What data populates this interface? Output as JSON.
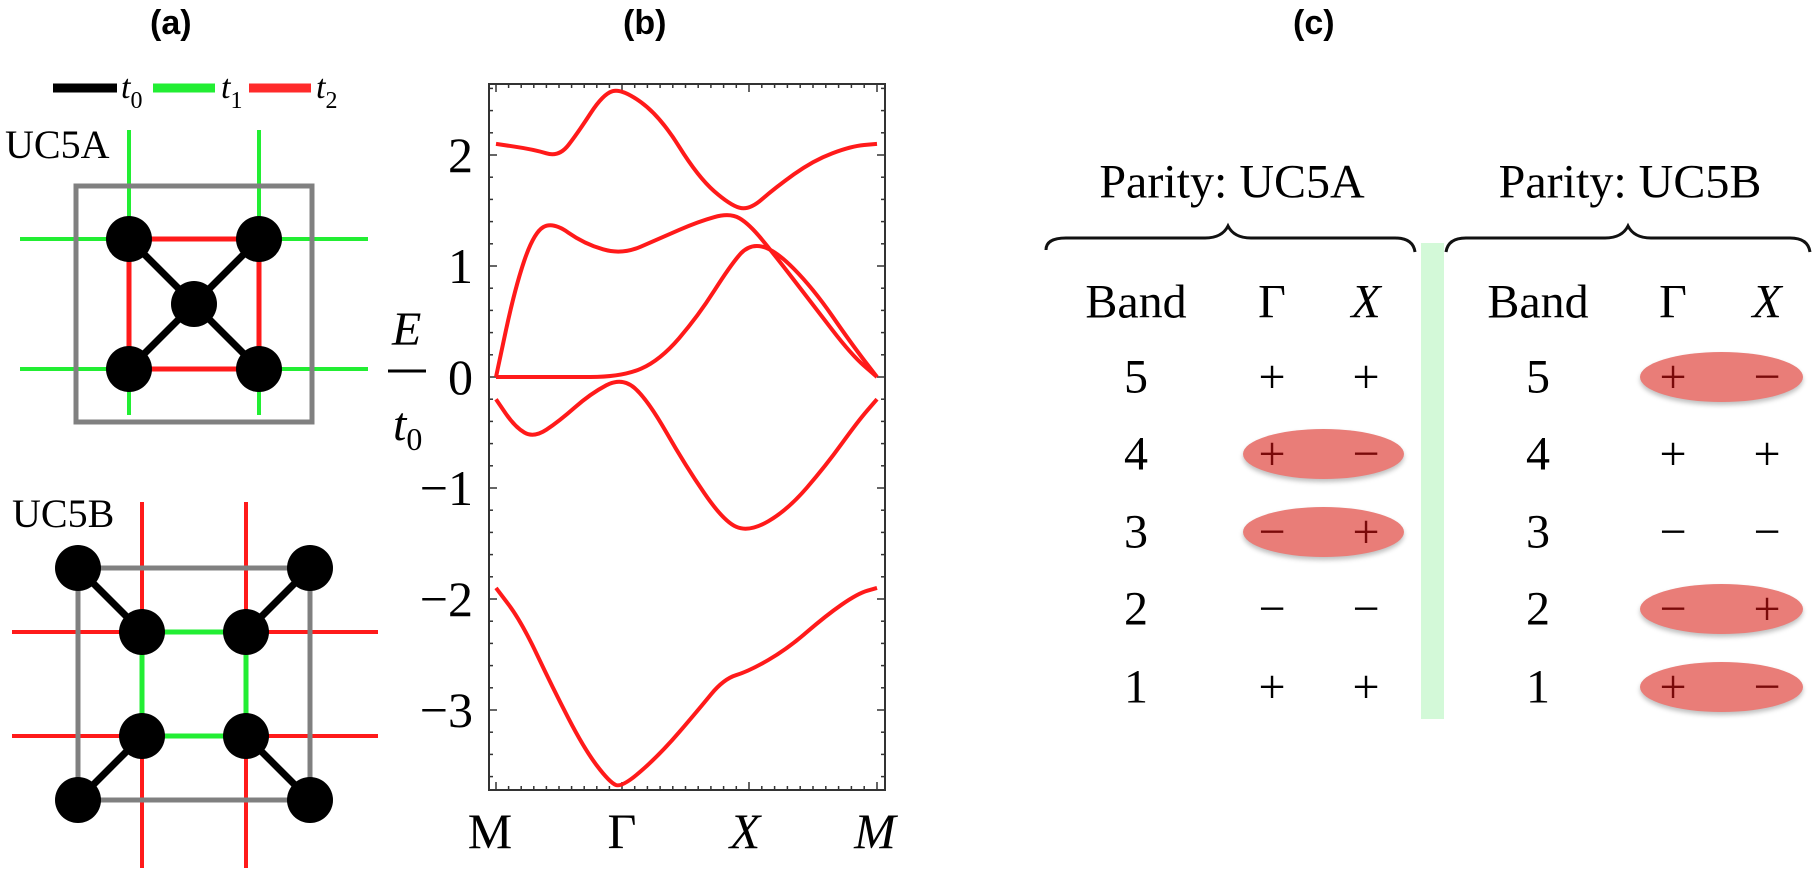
{
  "panels": {
    "a": {
      "label": "(a)"
    },
    "b": {
      "label": "(b)"
    },
    "c": {
      "label": "(c)"
    }
  },
  "legend": {
    "items": [
      {
        "symbol": "t",
        "sub": "0",
        "color": "#000000"
      },
      {
        "symbol": "t",
        "sub": "1",
        "color": "#22ee33"
      },
      {
        "symbol": "t",
        "sub": "2",
        "color": "#ff2a2a"
      }
    ]
  },
  "lattice": {
    "uc5a_label": "UC5A",
    "uc5b_label": "UC5B",
    "colors": {
      "t0": "#000000",
      "t1": "#22ee33",
      "t2": "#ff1a1a",
      "cell": "#808080",
      "site": "#000000"
    }
  },
  "chart_data": {
    "type": "line",
    "title": "(b)",
    "xlabel": "",
    "ylabel": "E / t0",
    "ylabel_num": "E",
    "ylabel_den": "t",
    "ylabel_den_sub": "0",
    "x_ticks": [
      "M",
      "Γ",
      "X",
      "M"
    ],
    "y_ticks": [
      "2",
      "1",
      "0",
      "−1",
      "−2",
      "−3"
    ],
    "y_tick_values": [
      2,
      1,
      0,
      -1,
      -2,
      -3
    ],
    "ylim": [
      -3.7,
      2.65
    ],
    "grid": false,
    "line_color": "#ff1a1a",
    "x_positions": [
      0,
      1,
      2,
      3
    ],
    "series": [
      {
        "name": "band 5",
        "points": [
          [
            0,
            2.1
          ],
          [
            0.3,
            2.05
          ],
          [
            0.5,
            1.98
          ],
          [
            0.65,
            2.2
          ],
          [
            0.85,
            2.55
          ],
          [
            1.0,
            2.6
          ],
          [
            1.3,
            2.35
          ],
          [
            1.6,
            1.8
          ],
          [
            1.85,
            1.55
          ],
          [
            2.0,
            1.5
          ],
          [
            2.2,
            1.7
          ],
          [
            2.5,
            1.95
          ],
          [
            2.8,
            2.08
          ],
          [
            3.0,
            2.1
          ]
        ]
      },
      {
        "name": "band 4",
        "points": [
          [
            0,
            0
          ],
          [
            0.15,
            0.8
          ],
          [
            0.3,
            1.3
          ],
          [
            0.45,
            1.4
          ],
          [
            0.7,
            1.2
          ],
          [
            1.0,
            1.1
          ],
          [
            1.3,
            1.25
          ],
          [
            1.6,
            1.4
          ],
          [
            1.85,
            1.48
          ],
          [
            2.0,
            1.38
          ],
          [
            2.2,
            1.1
          ],
          [
            2.5,
            0.65
          ],
          [
            2.8,
            0.2
          ],
          [
            3.0,
            0
          ]
        ]
      },
      {
        "name": "band 3",
        "points": [
          [
            0,
            0
          ],
          [
            0.5,
            0
          ],
          [
            1.0,
            0
          ],
          [
            1.3,
            0.15
          ],
          [
            1.6,
            0.55
          ],
          [
            1.85,
            1.0
          ],
          [
            2.0,
            1.2
          ],
          [
            2.2,
            1.15
          ],
          [
            2.5,
            0.8
          ],
          [
            2.8,
            0.3
          ],
          [
            3.0,
            0
          ]
        ]
      },
      {
        "name": "band 2",
        "points": [
          [
            0,
            -0.2
          ],
          [
            0.15,
            -0.45
          ],
          [
            0.3,
            -0.55
          ],
          [
            0.5,
            -0.4
          ],
          [
            0.75,
            -0.15
          ],
          [
            1.0,
            0
          ],
          [
            1.2,
            -0.2
          ],
          [
            1.5,
            -0.8
          ],
          [
            1.8,
            -1.3
          ],
          [
            2.0,
            -1.4
          ],
          [
            2.3,
            -1.2
          ],
          [
            2.6,
            -0.8
          ],
          [
            2.85,
            -0.4
          ],
          [
            3.0,
            -0.2
          ]
        ]
      },
      {
        "name": "band 1",
        "points": [
          [
            0,
            -1.9
          ],
          [
            0.2,
            -2.2
          ],
          [
            0.45,
            -2.8
          ],
          [
            0.7,
            -3.35
          ],
          [
            0.9,
            -3.65
          ],
          [
            1.0,
            -3.7
          ],
          [
            1.3,
            -3.4
          ],
          [
            1.6,
            -3.0
          ],
          [
            1.8,
            -2.72
          ],
          [
            2.0,
            -2.65
          ],
          [
            2.3,
            -2.45
          ],
          [
            2.6,
            -2.15
          ],
          [
            2.85,
            -1.95
          ],
          [
            3.0,
            -1.9
          ]
        ]
      }
    ]
  },
  "parity_table": {
    "groups": [
      {
        "title": "Parity: UC5A",
        "headers": [
          "Band",
          "Γ",
          "X"
        ],
        "rows": [
          {
            "band": "5",
            "gamma": "+",
            "x": "+",
            "highlight": false
          },
          {
            "band": "4",
            "gamma": "+",
            "x": "−",
            "highlight": true
          },
          {
            "band": "3",
            "gamma": "−",
            "x": "+",
            "highlight": true
          },
          {
            "band": "2",
            "gamma": "−",
            "x": "−",
            "highlight": false
          },
          {
            "band": "1",
            "gamma": "+",
            "x": "+",
            "highlight": false
          }
        ]
      },
      {
        "title": "Parity: UC5B",
        "headers": [
          "Band",
          "Γ",
          "X"
        ],
        "rows": [
          {
            "band": "5",
            "gamma": "+",
            "x": "−",
            "highlight": true
          },
          {
            "band": "4",
            "gamma": "+",
            "x": "+",
            "highlight": false
          },
          {
            "band": "3",
            "gamma": "−",
            "x": "−",
            "highlight": false
          },
          {
            "band": "2",
            "gamma": "−",
            "x": "+",
            "highlight": true
          },
          {
            "band": "1",
            "gamma": "+",
            "x": "−",
            "highlight": true
          }
        ]
      }
    ],
    "highlight_color": "#e97d78",
    "divider_color": "#d3f9d8"
  }
}
